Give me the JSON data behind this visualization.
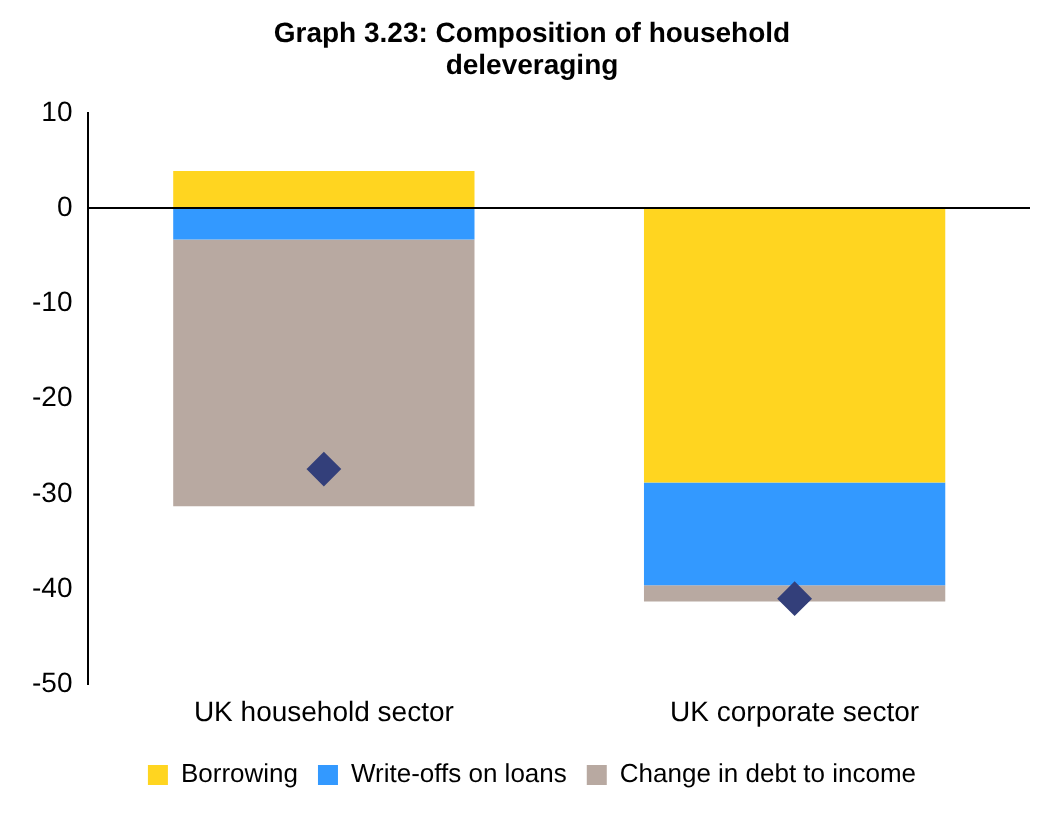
{
  "chart_data": {
    "type": "bar",
    "title": "Graph 3.23: Composition of household deleveraging",
    "categories": [
      "UK household sector",
      "UK corporate sector"
    ],
    "stacked": true,
    "ylim": [
      -50,
      10
    ],
    "yticks": [
      -50,
      -40,
      -30,
      -20,
      -10,
      0,
      10
    ],
    "grid": false,
    "ref_lines": [
      {
        "axis": "y",
        "value": 0,
        "color": "#000000"
      }
    ],
    "legend": "bottom",
    "series": [
      {
        "name": "Borrowing",
        "color": "#ffd520",
        "values": [
          3.9,
          -28.8
        ]
      },
      {
        "name": "Write-offs on loans",
        "color": "#3399ff",
        "values": [
          -3.3,
          -10.8
        ]
      },
      {
        "name": "Change in debt to income",
        "color": "#b8a9a1",
        "values": [
          -28,
          -1.7
        ]
      },
      {
        "type": "scatter",
        "color": "#333f7a",
        "marker": "diamond",
        "x": [
          "UK household sector",
          "UK corporate sector"
        ],
        "values": [
          -27.4,
          -41
        ]
      }
    ]
  }
}
